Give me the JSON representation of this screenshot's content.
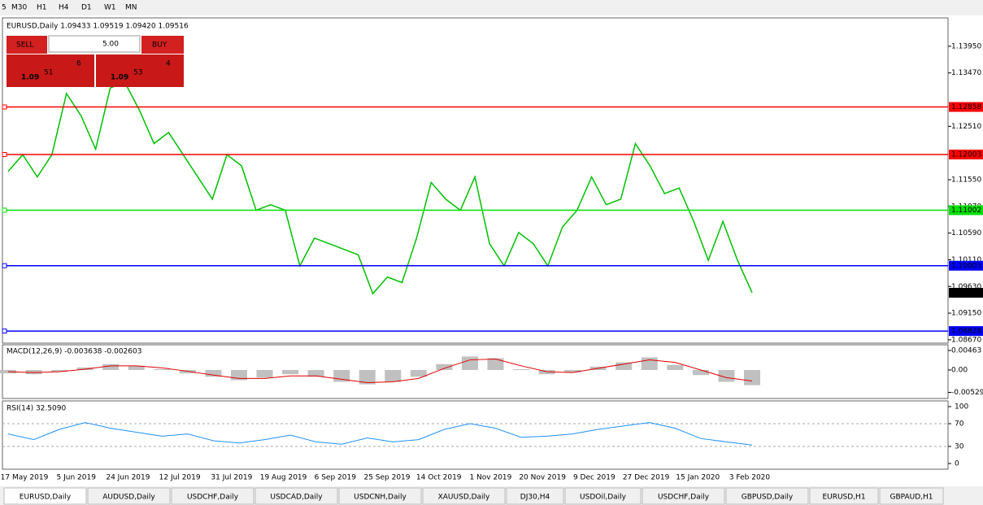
{
  "toolbar": {
    "items": [
      "5",
      "M30",
      "H1",
      "H4",
      "D1",
      "W1",
      "MN"
    ]
  },
  "chart": {
    "header": "EURUSD,Daily  1.09433 1.09519 1.09420 1.09516",
    "trade": {
      "sell": "SELL",
      "buy": "BUY",
      "lots": "5.00",
      "sell_big": "1.09",
      "sell_pips": "51",
      "sell_frac": "6",
      "buy_big": "1.09",
      "buy_pips": "53",
      "buy_frac": "4"
    },
    "ylim": [
      1.0861,
      1.1446
    ],
    "yticks": [
      {
        "value": 1.1395,
        "label": "1.13950"
      },
      {
        "value": 1.1347,
        "label": "1.13470"
      },
      {
        "value": 1.1251,
        "label": "1.12510"
      },
      {
        "value": 1.1155,
        "label": "1.11550"
      },
      {
        "value": 1.1107,
        "label": "1.11070"
      },
      {
        "value": 1.1059,
        "label": "1.10590"
      },
      {
        "value": 1.1011,
        "label": "1.10110"
      },
      {
        "value": 1.0963,
        "label": "1.09630"
      },
      {
        "value": 1.0915,
        "label": "1.09150"
      },
      {
        "value": 1.0867,
        "label": "1.08670"
      }
    ],
    "levels": [
      {
        "value": 1.12858,
        "label": "1.12858",
        "color": "#ff0000"
      },
      {
        "value": 1.12003,
        "label": "1.12003",
        "color": "#ff0000"
      },
      {
        "value": 1.11002,
        "label": "1.11002",
        "color": "#00e000"
      },
      {
        "value": 1.10003,
        "label": "1.10003",
        "color": "#0000ff"
      },
      {
        "value": 1.08828,
        "label": "1.08828",
        "color": "#0000ff"
      }
    ],
    "current": {
      "value": 1.09516,
      "label": "1.09516"
    },
    "closes": [
      1.117,
      1.12,
      1.116,
      1.12,
      1.131,
      1.127,
      1.121,
      1.132,
      1.133,
      1.128,
      1.122,
      1.124,
      1.12,
      1.116,
      1.112,
      1.12,
      1.118,
      1.11,
      1.111,
      1.11,
      1.1,
      1.105,
      1.104,
      1.103,
      1.102,
      1.095,
      1.098,
      1.097,
      1.105,
      1.115,
      1.112,
      1.11,
      1.116,
      1.104,
      1.1,
      1.106,
      1.104,
      1.1,
      1.107,
      1.11,
      1.116,
      1.111,
      1.112,
      1.122,
      1.118,
      1.113,
      1.114,
      1.108,
      1.101,
      1.108,
      1.101,
      1.0952
    ],
    "price_color": "#00c000",
    "dates": [
      "17 May 2019",
      "5 Jun 2019",
      "24 Jun 2019",
      "12 Jul 2019",
      "31 Jul 2019",
      "19 Aug 2019",
      "6 Sep 2019",
      "25 Sep 2019",
      "14 Oct 2019",
      "1 Nov 2019",
      "20 Nov 2019",
      "9 Dec 2019",
      "27 Dec 2019",
      "15 Jan 2020",
      "3 Feb 2020"
    ],
    "macd": {
      "label": "MACD(12,26,9) -0.003638 -0.002603",
      "ylim": [
        -0.00675,
        0.00598
      ],
      "yticks": [
        {
          "value": 0.00463,
          "label": "0.00463"
        },
        {
          "value": 0,
          "label": "0.00"
        },
        {
          "value": -0.005299,
          "label": "-0.005299"
        }
      ],
      "histogram": [
        -0.0008,
        -0.001,
        -0.0004,
        0.0006,
        0.0014,
        0.001,
        0.0002,
        -0.0008,
        -0.0016,
        -0.0024,
        -0.0018,
        -0.001,
        -0.0016,
        -0.0028,
        -0.0034,
        -0.0028,
        -0.0016,
        0.0014,
        0.0032,
        0.0028,
        0.0002,
        -0.001,
        -0.0006,
        0.0008,
        0.0018,
        0.003,
        0.0012,
        -0.0012,
        -0.0028,
        -0.0036
      ],
      "signal": [
        -0.0004,
        -0.0006,
        -0.0004,
        0.0002,
        0.001,
        0.001,
        0.0005,
        -0.0003,
        -0.0012,
        -0.002,
        -0.002,
        -0.0014,
        -0.0014,
        -0.0022,
        -0.003,
        -0.0028,
        -0.002,
        0.0004,
        0.0024,
        0.0026,
        0.001,
        -0.0004,
        -0.0006,
        0.0004,
        0.0014,
        0.0024,
        0.0018,
        0,
        -0.0018,
        -0.0026
      ]
    },
    "rsi": {
      "label": "RSI(14) 32.5090",
      "ylim": [
        -10,
        110
      ],
      "yticks": [
        100,
        70,
        30,
        0
      ],
      "values": [
        52,
        42,
        60,
        72,
        62,
        55,
        48,
        52,
        40,
        36,
        42,
        50,
        38,
        34,
        45,
        38,
        42,
        60,
        70,
        62,
        46,
        48,
        52,
        60,
        66,
        72,
        62,
        44,
        38,
        32.5
      ]
    }
  },
  "tabs": [
    "EURUSD,Daily",
    "AUDUSD,Daily",
    "USDCHF,Daily",
    "USDCAD,Daily",
    "USDCNH,Daily",
    "XAUUSD,Daily",
    "DJ30,H4",
    "USDOil,Daily",
    "USDCHF,Daily",
    "GBPUSD,Daily",
    "EURUSD,H1",
    "GBPAUD,H1"
  ]
}
